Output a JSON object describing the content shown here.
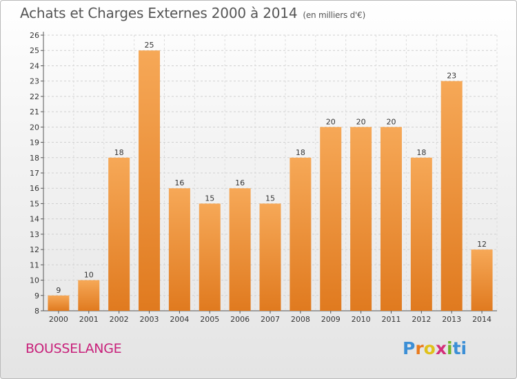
{
  "header": {
    "title": "Achats et Charges Externes 2000 à 2014",
    "unit": "(en milliers d'€)"
  },
  "footer": {
    "town": "BOUSSELANGE",
    "logo": [
      "P",
      "r",
      "o",
      "x",
      "i",
      "ti"
    ]
  },
  "colors": {
    "bar_top": "#f6a857",
    "bar_bottom": "#e07a1f",
    "town": "#c8207a"
  },
  "chart_data": {
    "type": "bar",
    "title": "Achats et Charges Externes 2000 à 2014",
    "subtitle": "(en milliers d'€)",
    "categories": [
      "2000",
      "2001",
      "2002",
      "2003",
      "2004",
      "2005",
      "2006",
      "2007",
      "2008",
      "2009",
      "2010",
      "2011",
      "2012",
      "2013",
      "2014"
    ],
    "values": [
      9,
      10,
      18,
      25,
      16,
      15,
      16,
      15,
      18,
      20,
      20,
      20,
      18,
      23,
      12
    ],
    "ylim": [
      8,
      26
    ],
    "yticks": [
      8,
      9,
      10,
      11,
      12,
      13,
      14,
      15,
      16,
      17,
      18,
      19,
      20,
      21,
      22,
      23,
      24,
      25,
      26
    ],
    "grid": true,
    "xlabel": "",
    "ylabel": ""
  }
}
